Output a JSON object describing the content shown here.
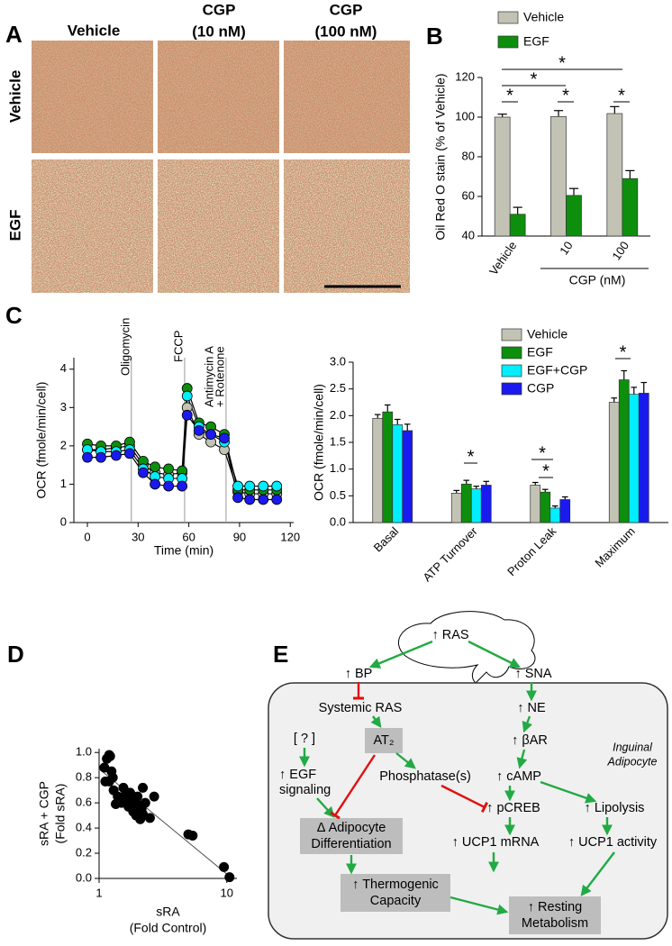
{
  "panel_a": {
    "label": "A",
    "columns": [
      [
        "Vehicle"
      ],
      [
        "CGP",
        "(10 nM)"
      ],
      [
        "CGP",
        "(100 nM)"
      ]
    ],
    "rows": [
      "Vehicle",
      "EGF"
    ]
  },
  "chart_data": [
    {
      "type": "bar",
      "panel_label": "B",
      "ylabel": "Oil Red O stain (% of Vehicle)",
      "categories": [
        "Vehicle",
        "10",
        "100"
      ],
      "group_label": "CGP (nM)",
      "series": [
        {
          "name": "Vehicle",
          "color": "#c3c3b5",
          "values": [
            100,
            100.3,
            101.8
          ],
          "errors": [
            1.5,
            3,
            3.5
          ]
        },
        {
          "name": "EGF",
          "color": "#0d8f0d",
          "values": [
            51,
            60.5,
            69
          ],
          "errors": [
            3.5,
            3.5,
            4
          ]
        }
      ],
      "ylim": [
        40,
        120
      ],
      "yticks": [
        40,
        60,
        80,
        100,
        120
      ],
      "significance": [
        "*",
        "*",
        "*",
        "*",
        "*"
      ],
      "legend": "top"
    },
    {
      "type": "line",
      "panel_label": "C",
      "xlabel": "Time (min)",
      "ylabel": "OCR (fmole/min/cell)",
      "x": [
        0,
        8,
        17,
        25,
        33,
        40,
        48,
        56,
        59,
        66,
        73,
        81,
        89,
        96,
        104,
        112
      ],
      "series": [
        {
          "name": "Vehicle",
          "color": "#c3c3b5",
          "values": [
            1.9,
            1.9,
            1.95,
            2.0,
            1.5,
            1.3,
            1.25,
            1.3,
            3.0,
            2.3,
            2.1,
            1.9,
            0.8,
            0.75,
            0.75,
            0.75
          ]
        },
        {
          "name": "EGF",
          "color": "#0d8f0d",
          "values": [
            2.05,
            2.0,
            2.0,
            2.1,
            1.6,
            1.45,
            1.4,
            1.35,
            3.5,
            2.6,
            2.5,
            2.3,
            0.85,
            0.85,
            0.85,
            0.85
          ]
        },
        {
          "name": "EGF+CGP",
          "color": "#00eeff",
          "values": [
            1.9,
            1.85,
            1.85,
            1.9,
            1.4,
            1.2,
            1.15,
            1.15,
            3.3,
            2.5,
            2.3,
            2.1,
            0.95,
            0.95,
            0.95,
            0.95
          ]
        },
        {
          "name": "CGP",
          "color": "#1a1aee",
          "values": [
            1.7,
            1.7,
            1.75,
            1.8,
            1.3,
            1.0,
            0.95,
            0.95,
            2.8,
            2.4,
            2.3,
            2.2,
            0.65,
            0.6,
            0.6,
            0.6
          ]
        }
      ],
      "line_color": "#000000",
      "injections": [
        {
          "x": 26,
          "label": [
            "Oligomycin"
          ]
        },
        {
          "x": 57.5,
          "label": [
            "FCCP"
          ]
        },
        {
          "x": 82,
          "label": [
            "Antimycin A",
            "+ Rotenone"
          ]
        }
      ],
      "xlim": [
        -8,
        122
      ],
      "xticks": [
        0,
        30,
        60,
        90,
        120
      ],
      "ylim": [
        0,
        4.3
      ],
      "yticks": [
        0,
        1,
        2,
        3,
        4
      ]
    },
    {
      "type": "bar",
      "ylabel": "OCR (fmole/min/cell)",
      "categories": [
        "Basal",
        "ATP Turnover",
        "Proton Leak",
        "Maximum"
      ],
      "series": [
        {
          "name": "Vehicle",
          "color": "#c3c3b5",
          "values": [
            1.95,
            0.55,
            0.7,
            2.25
          ],
          "errors": [
            0.07,
            0.05,
            0.05,
            0.08
          ]
        },
        {
          "name": "EGF",
          "color": "#0d8f0d",
          "values": [
            2.07,
            0.72,
            0.57,
            2.67
          ],
          "errors": [
            0.13,
            0.07,
            0.05,
            0.17
          ]
        },
        {
          "name": "EGF+CGP",
          "color": "#00eeff",
          "values": [
            1.83,
            0.63,
            0.27,
            2.4
          ],
          "errors": [
            0.1,
            0.05,
            0.04,
            0.13
          ]
        },
        {
          "name": "CGP",
          "color": "#1a1aee",
          "values": [
            1.72,
            0.7,
            0.43,
            2.42
          ],
          "errors": [
            0.12,
            0.07,
            0.05,
            0.2
          ]
        }
      ],
      "ylim": [
        0,
        3
      ],
      "yticks": [
        {
          "value": 0,
          "label": "0.0"
        },
        0.5,
        {
          "value": 1,
          "label": "1.0"
        },
        1.5,
        {
          "value": 2,
          "label": "2.0"
        },
        2.5,
        {
          "value": 3,
          "label": "3.0"
        }
      ],
      "significance": [
        "*",
        "*",
        "*",
        "*"
      ],
      "legend": "top"
    },
    {
      "type": "scatter",
      "panel_label": "D",
      "xlabel": [
        "sRA",
        "(Fold Control)"
      ],
      "ylabel": [
        "sRA + CGP",
        "(Fold sRA)"
      ],
      "x": [
        1.15,
        1.2,
        1.22,
        1.1,
        1.12,
        1.2,
        1.25,
        1.28,
        1.3,
        1.35,
        1.4,
        1.5,
        1.55,
        1.6,
        1.65,
        1.7,
        1.75,
        1.8,
        1.85,
        1.9,
        1.95,
        2.0,
        2.05,
        2.1,
        2.15,
        2.2,
        2.3,
        2.5,
        2.7,
        2.2,
        5.0,
        5.4,
        9.5,
        10.5
      ],
      "values": [
        0.95,
        0.98,
        0.97,
        0.88,
        0.77,
        0.77,
        0.85,
        0.8,
        0.7,
        0.59,
        0.65,
        0.6,
        0.72,
        0.66,
        0.62,
        0.57,
        0.68,
        0.63,
        0.53,
        0.6,
        0.5,
        0.65,
        0.58,
        0.47,
        0.55,
        0.51,
        0.6,
        0.48,
        0.65,
        0.72,
        0.35,
        0.34,
        0.09,
        0.01
      ],
      "color": "#000000",
      "fit": {
        "x": [
          1,
          11
        ],
        "values": [
          0.87,
          0.0
        ]
      },
      "xscale": "log",
      "xlim": [
        1,
        12
      ],
      "xticks": [
        1,
        10
      ],
      "ylim": [
        0,
        1.03
      ],
      "yticks": [
        {
          "value": 0,
          "label": "0.0"
        },
        0.2,
        0.4,
        0.6,
        0.8,
        {
          "value": 1,
          "label": "1.0"
        }
      ]
    }
  ],
  "diagram": {
    "label": "E",
    "nodes": [
      [
        "↑ RAS"
      ],
      [
        "↑ BP"
      ],
      [
        "↑ SNA"
      ],
      [
        "Systemic RAS"
      ],
      [
        "↑ NE"
      ],
      [
        "[ ? ]"
      ],
      [
        "AT₂"
      ],
      [
        "↑ βAR"
      ],
      [
        "Inguinal",
        "Adipocyte"
      ],
      [
        "↑ EGF",
        "signaling"
      ],
      [
        "Phosphatase(s)"
      ],
      [
        "↑ cAMP"
      ],
      [
        "↑ pCREB"
      ],
      [
        "↑ Lipolysis"
      ],
      [
        "Δ Adipocyte",
        "Differentiation"
      ],
      [
        "↑ UCP1 mRNA"
      ],
      [
        "↑ UCP1 activity"
      ],
      [
        "↑ Thermogenic",
        "Capacity"
      ],
      [
        "↑ Resting",
        "Metabolism"
      ]
    ]
  }
}
